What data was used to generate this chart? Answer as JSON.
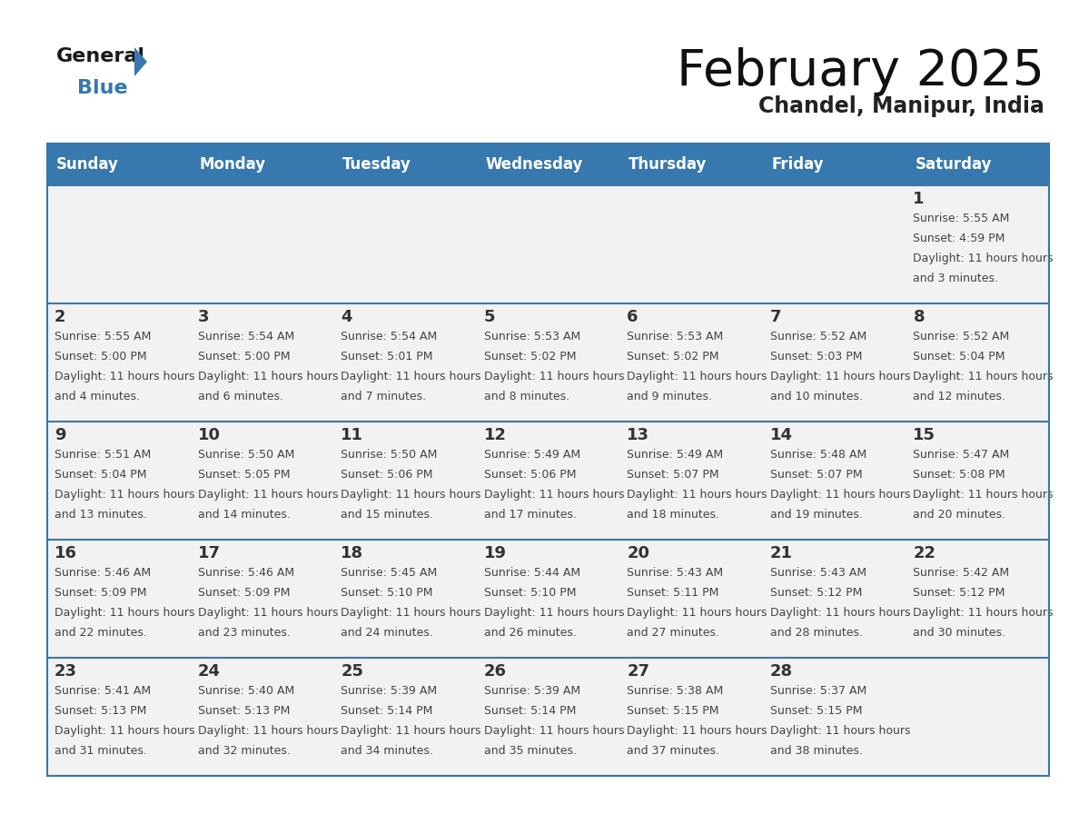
{
  "title": "February 2025",
  "subtitle": "Chandel, Manipur, India",
  "header_bg": "#3778ae",
  "header_text": "#ffffff",
  "day_headers": [
    "Sunday",
    "Monday",
    "Tuesday",
    "Wednesday",
    "Thursday",
    "Friday",
    "Saturday"
  ],
  "cell_bg": "#f2f2f2",
  "separator_color": "#3778ae",
  "date_color": "#333333",
  "text_color": "#444444",
  "background": "#ffffff",
  "calendar_data": [
    [
      {
        "day": null,
        "sunrise": null,
        "sunset": null,
        "daylight": null
      },
      {
        "day": null,
        "sunrise": null,
        "sunset": null,
        "daylight": null
      },
      {
        "day": null,
        "sunrise": null,
        "sunset": null,
        "daylight": null
      },
      {
        "day": null,
        "sunrise": null,
        "sunset": null,
        "daylight": null
      },
      {
        "day": null,
        "sunrise": null,
        "sunset": null,
        "daylight": null
      },
      {
        "day": null,
        "sunrise": null,
        "sunset": null,
        "daylight": null
      },
      {
        "day": 1,
        "sunrise": "5:55 AM",
        "sunset": "4:59 PM",
        "daylight": "11 hours and 3 minutes"
      }
    ],
    [
      {
        "day": 2,
        "sunrise": "5:55 AM",
        "sunset": "5:00 PM",
        "daylight": "11 hours and 4 minutes"
      },
      {
        "day": 3,
        "sunrise": "5:54 AM",
        "sunset": "5:00 PM",
        "daylight": "11 hours and 6 minutes"
      },
      {
        "day": 4,
        "sunrise": "5:54 AM",
        "sunset": "5:01 PM",
        "daylight": "11 hours and 7 minutes"
      },
      {
        "day": 5,
        "sunrise": "5:53 AM",
        "sunset": "5:02 PM",
        "daylight": "11 hours and 8 minutes"
      },
      {
        "day": 6,
        "sunrise": "5:53 AM",
        "sunset": "5:02 PM",
        "daylight": "11 hours and 9 minutes"
      },
      {
        "day": 7,
        "sunrise": "5:52 AM",
        "sunset": "5:03 PM",
        "daylight": "11 hours and 10 minutes"
      },
      {
        "day": 8,
        "sunrise": "5:52 AM",
        "sunset": "5:04 PM",
        "daylight": "11 hours and 12 minutes"
      }
    ],
    [
      {
        "day": 9,
        "sunrise": "5:51 AM",
        "sunset": "5:04 PM",
        "daylight": "11 hours and 13 minutes"
      },
      {
        "day": 10,
        "sunrise": "5:50 AM",
        "sunset": "5:05 PM",
        "daylight": "11 hours and 14 minutes"
      },
      {
        "day": 11,
        "sunrise": "5:50 AM",
        "sunset": "5:06 PM",
        "daylight": "11 hours and 15 minutes"
      },
      {
        "day": 12,
        "sunrise": "5:49 AM",
        "sunset": "5:06 PM",
        "daylight": "11 hours and 17 minutes"
      },
      {
        "day": 13,
        "sunrise": "5:49 AM",
        "sunset": "5:07 PM",
        "daylight": "11 hours and 18 minutes"
      },
      {
        "day": 14,
        "sunrise": "5:48 AM",
        "sunset": "5:07 PM",
        "daylight": "11 hours and 19 minutes"
      },
      {
        "day": 15,
        "sunrise": "5:47 AM",
        "sunset": "5:08 PM",
        "daylight": "11 hours and 20 minutes"
      }
    ],
    [
      {
        "day": 16,
        "sunrise": "5:46 AM",
        "sunset": "5:09 PM",
        "daylight": "11 hours and 22 minutes"
      },
      {
        "day": 17,
        "sunrise": "5:46 AM",
        "sunset": "5:09 PM",
        "daylight": "11 hours and 23 minutes"
      },
      {
        "day": 18,
        "sunrise": "5:45 AM",
        "sunset": "5:10 PM",
        "daylight": "11 hours and 24 minutes"
      },
      {
        "day": 19,
        "sunrise": "5:44 AM",
        "sunset": "5:10 PM",
        "daylight": "11 hours and 26 minutes"
      },
      {
        "day": 20,
        "sunrise": "5:43 AM",
        "sunset": "5:11 PM",
        "daylight": "11 hours and 27 minutes"
      },
      {
        "day": 21,
        "sunrise": "5:43 AM",
        "sunset": "5:12 PM",
        "daylight": "11 hours and 28 minutes"
      },
      {
        "day": 22,
        "sunrise": "5:42 AM",
        "sunset": "5:12 PM",
        "daylight": "11 hours and 30 minutes"
      }
    ],
    [
      {
        "day": 23,
        "sunrise": "5:41 AM",
        "sunset": "5:13 PM",
        "daylight": "11 hours and 31 minutes"
      },
      {
        "day": 24,
        "sunrise": "5:40 AM",
        "sunset": "5:13 PM",
        "daylight": "11 hours and 32 minutes"
      },
      {
        "day": 25,
        "sunrise": "5:39 AM",
        "sunset": "5:14 PM",
        "daylight": "11 hours and 34 minutes"
      },
      {
        "day": 26,
        "sunrise": "5:39 AM",
        "sunset": "5:14 PM",
        "daylight": "11 hours and 35 minutes"
      },
      {
        "day": 27,
        "sunrise": "5:38 AM",
        "sunset": "5:15 PM",
        "daylight": "11 hours and 37 minutes"
      },
      {
        "day": 28,
        "sunrise": "5:37 AM",
        "sunset": "5:15 PM",
        "daylight": "11 hours and 38 minutes"
      },
      {
        "day": null,
        "sunrise": null,
        "sunset": null,
        "daylight": null
      }
    ]
  ]
}
